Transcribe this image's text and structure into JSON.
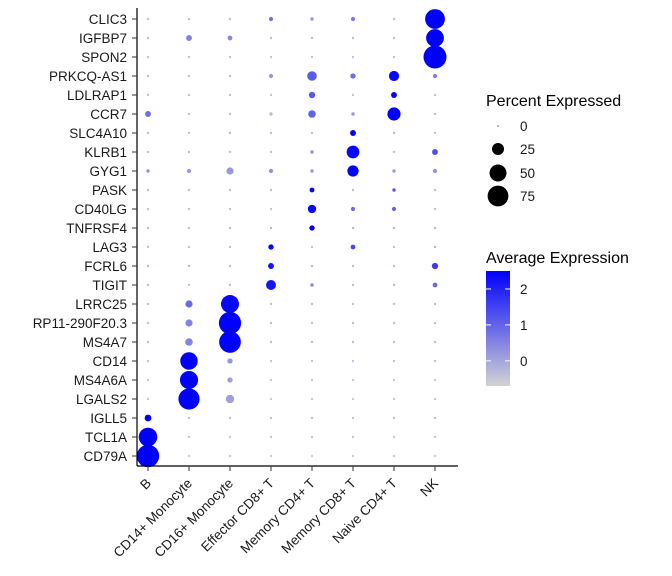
{
  "chart_data": {
    "type": "dotplot",
    "title": "",
    "xlabel": "",
    "ylabel": "",
    "categories": [
      "B",
      "CD14+ Monocyte",
      "CD16+ Monocyte",
      "Effector CD8+ T",
      "Memory CD4+ T",
      "Memory CD8+ T",
      "Naive CD4+ T",
      "NK"
    ],
    "features": [
      "CD79A",
      "TCL1A",
      "IGLL5",
      "LGALS2",
      "MS4A6A",
      "CD14",
      "MS4A7",
      "RP11-290F20.3",
      "LRRC25",
      "TIGIT",
      "FCRL6",
      "LAG3",
      "TNFRSF4",
      "CD40LG",
      "PASK",
      "GYG1",
      "KLRB1",
      "SLC4A10",
      "CCR7",
      "LDLRAP1",
      "PRKCQ-AS1",
      "SPON2",
      "IGFBP7",
      "CLIC3"
    ],
    "pct": [
      [
        88,
        1,
        1,
        1,
        1,
        1,
        1,
        1
      ],
      [
        60,
        1,
        1,
        1,
        1,
        1,
        1,
        1
      ],
      [
        8,
        1,
        1,
        1,
        1,
        1,
        1,
        1
      ],
      [
        1,
        78,
        12,
        1,
        1,
        1,
        1,
        1
      ],
      [
        1,
        57,
        5,
        1,
        1,
        1,
        1,
        1
      ],
      [
        1,
        53,
        5,
        1,
        1,
        1,
        1,
        1
      ],
      [
        1,
        10,
        82,
        1,
        1,
        1,
        1,
        1
      ],
      [
        1,
        9,
        86,
        1,
        1,
        1,
        1,
        1
      ],
      [
        1,
        9,
        56,
        1,
        1,
        1,
        1,
        1
      ],
      [
        1,
        1,
        1,
        17,
        2,
        1,
        1,
        4
      ],
      [
        1,
        1,
        1,
        6,
        1,
        1,
        1,
        7
      ],
      [
        1,
        1,
        1,
        5,
        1,
        4,
        1,
        1
      ],
      [
        1,
        1,
        1,
        1,
        5,
        1,
        1,
        1
      ],
      [
        1,
        1,
        1,
        1,
        12,
        3,
        3,
        1
      ],
      [
        1,
        1,
        1,
        1,
        4,
        1,
        2,
        1
      ],
      [
        2,
        3,
        9,
        3,
        2,
        22,
        2,
        3
      ],
      [
        1,
        1,
        1,
        1,
        2,
        28,
        1,
        6
      ],
      [
        1,
        1,
        1,
        1,
        1,
        6,
        1,
        1
      ],
      [
        6,
        1,
        1,
        2,
        10,
        2,
        30,
        1
      ],
      [
        1,
        1,
        1,
        1,
        7,
        1,
        6,
        1
      ],
      [
        1,
        1,
        1,
        3,
        16,
        5,
        18,
        3
      ],
      [
        1,
        1,
        1,
        1,
        1,
        1,
        1,
        92
      ],
      [
        1,
        6,
        4,
        1,
        1,
        1,
        1,
        55
      ],
      [
        1,
        1,
        1,
        3,
        2,
        3,
        1,
        68
      ]
    ],
    "avg": [
      [
        2.5,
        -0.6,
        -0.6,
        -0.6,
        -0.6,
        -0.6,
        -0.6,
        -0.6
      ],
      [
        2.5,
        -0.5,
        -0.5,
        -0.5,
        -0.5,
        -0.5,
        -0.5,
        -0.5
      ],
      [
        2.5,
        -0.4,
        -0.4,
        -0.4,
        -0.4,
        -0.4,
        -0.4,
        -0.4
      ],
      [
        -0.5,
        2.5,
        0.1,
        -0.5,
        -0.5,
        -0.5,
        -0.5,
        -0.5
      ],
      [
        -0.5,
        2.5,
        0.1,
        -0.5,
        -0.5,
        -0.5,
        -0.5,
        -0.5
      ],
      [
        -0.4,
        2.5,
        0.2,
        -0.4,
        -0.4,
        -0.4,
        -0.4,
        -0.4
      ],
      [
        -0.4,
        0.5,
        2.5,
        -0.4,
        -0.4,
        -0.4,
        -0.4,
        -0.4
      ],
      [
        -0.4,
        0.5,
        2.5,
        -0.4,
        -0.4,
        -0.4,
        -0.4,
        -0.4
      ],
      [
        -0.4,
        0.9,
        2.4,
        -0.4,
        -0.4,
        -0.4,
        -0.4,
        -0.4
      ],
      [
        -0.4,
        -0.4,
        -0.4,
        2.2,
        0.4,
        -0.4,
        -0.4,
        0.9
      ],
      [
        -0.3,
        -0.3,
        -0.3,
        2.2,
        -0.3,
        -0.3,
        -0.3,
        1.6
      ],
      [
        -0.4,
        -0.4,
        -0.4,
        2.5,
        -0.4,
        1.4,
        -0.4,
        -0.2
      ],
      [
        -0.4,
        -0.4,
        -0.4,
        -0.2,
        2.5,
        -0.3,
        -0.3,
        -0.3
      ],
      [
        -0.4,
        -0.4,
        -0.4,
        -0.4,
        2.4,
        0.9,
        1.0,
        -0.4
      ],
      [
        -0.4,
        -0.4,
        -0.4,
        -0.4,
        2.5,
        -0.4,
        1.2,
        -0.4
      ],
      [
        0.3,
        0.2,
        0.2,
        0.3,
        0.2,
        2.5,
        0.2,
        0.3
      ],
      [
        -0.4,
        -0.4,
        -0.4,
        -0.4,
        0.3,
        2.4,
        -0.4,
        1.3
      ],
      [
        -0.4,
        -0.4,
        -0.4,
        -0.4,
        -0.4,
        2.5,
        -0.4,
        -0.4
      ],
      [
        0.8,
        -0.4,
        -0.4,
        -0.4,
        1.0,
        0.2,
        2.5,
        -0.4
      ],
      [
        -0.4,
        -0.4,
        -0.4,
        -0.4,
        1.2,
        -0.4,
        2.5,
        -0.4
      ],
      [
        -0.4,
        -0.4,
        -0.4,
        0.2,
        1.1,
        0.8,
        2.4,
        0.6
      ],
      [
        -0.4,
        -0.4,
        -0.4,
        -0.4,
        -0.4,
        -0.4,
        -0.4,
        2.5
      ],
      [
        -0.4,
        0.5,
        0.4,
        -0.4,
        -0.4,
        -0.4,
        -0.4,
        2.5
      ],
      [
        -0.4,
        -0.4,
        -0.4,
        0.8,
        0.2,
        0.7,
        -0.4,
        2.5
      ]
    ],
    "size_legend": {
      "title": "Percent Expressed",
      "breaks": [
        0,
        25,
        50,
        75
      ],
      "labels": [
        "0",
        "25",
        "50",
        "75"
      ]
    },
    "color_legend": {
      "title": "Average Expression",
      "breaks": [
        0,
        1,
        2
      ],
      "labels": [
        "0",
        "1",
        "2"
      ],
      "range": [
        -0.7,
        2.5
      ],
      "low_color": "#d3d3d3",
      "high_color": "#0000ff"
    }
  }
}
